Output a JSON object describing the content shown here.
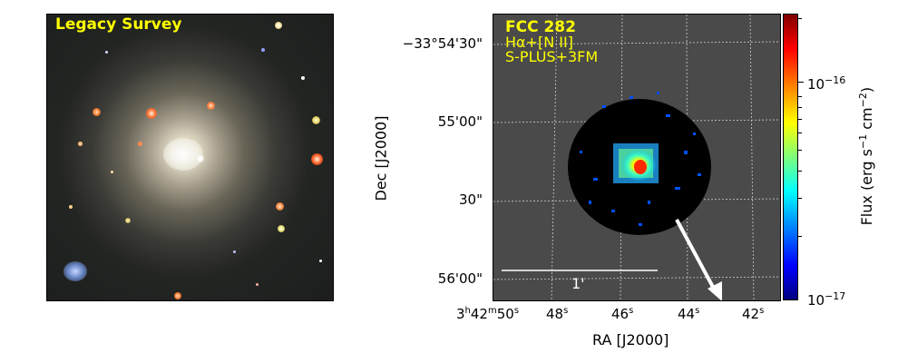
{
  "left_panel": {
    "title": "Legacy Survey"
  },
  "right_panel": {
    "object_name": "FCC 282",
    "line_label": "Hα+[N II]",
    "survey_label": "S-PLUS+3FM",
    "scale_bar_label": "1'",
    "dec_ticks": [
      "−33°54'30\"",
      "55'00\"",
      "30\"",
      "56'00\""
    ],
    "ra_ticks_first": {
      "base": "3",
      "h": "h",
      "m_base": "42",
      "m": "m",
      "s_base": "50",
      "s": "s"
    },
    "ra_ticks": [
      {
        "base": "48",
        "s": "s"
      },
      {
        "base": "46",
        "s": "s"
      },
      {
        "base": "44",
        "s": "s"
      },
      {
        "base": "42",
        "s": "s"
      }
    ],
    "xlabel": "RA [J2000]",
    "ylabel": "Dec [J2000]"
  },
  "colorbar": {
    "label_main": "Flux (erg s",
    "label_exp1": "−1",
    "label_mid": " cm",
    "label_exp2": "−2",
    "label_end": ")",
    "ticks": [
      {
        "base": "10",
        "exp": "−16"
      },
      {
        "base": "10",
        "exp": "−17"
      }
    ]
  },
  "colors": {
    "label_yellow": "#ffff00",
    "map_background": "#4a4a4a"
  }
}
